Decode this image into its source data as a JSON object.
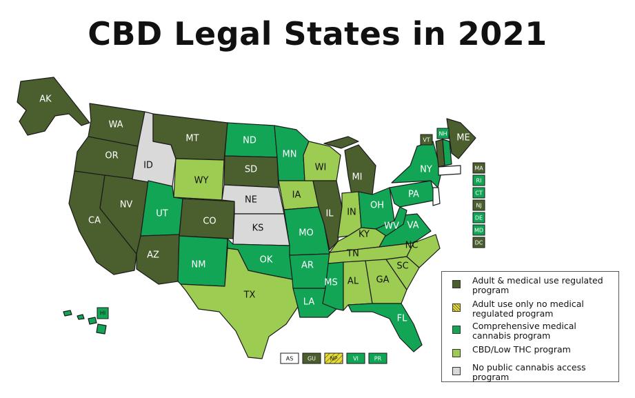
{
  "title": "CBD Legal States in 2021",
  "colors": {
    "adult_medical": "#4a5e2e",
    "adult_only": "#e5dc3c",
    "comprehensive": "#12a556",
    "cbd_low_thc": "#9ccc52",
    "none": "#d9d9d9"
  },
  "legend": [
    {
      "key": "adult_medical",
      "label": "Adult & medical use regulated program"
    },
    {
      "key": "adult_only",
      "label": "Adult use only no medical regulated program"
    },
    {
      "key": "comprehensive",
      "label": "Comprehensive medical cannabis program"
    },
    {
      "key": "cbd_low_thc",
      "label": "CBD/Low THC program"
    },
    {
      "key": "none",
      "label": "No public cannabis access program"
    }
  ],
  "states": {
    "AK": "adult_medical",
    "WA": "adult_medical",
    "OR": "adult_medical",
    "CA": "adult_medical",
    "NV": "adult_medical",
    "ID": "none",
    "MT": "adult_medical",
    "WY": "cbd_low_thc",
    "UT": "comprehensive",
    "AZ": "adult_medical",
    "CO": "adult_medical",
    "NM": "comprehensive",
    "ND": "comprehensive",
    "SD": "adult_medical",
    "NE": "none",
    "KS": "none",
    "OK": "comprehensive",
    "TX": "cbd_low_thc",
    "MN": "comprehensive",
    "IA": "cbd_low_thc",
    "MO": "comprehensive",
    "AR": "comprehensive",
    "LA": "comprehensive",
    "WI": "cbd_low_thc",
    "IL": "adult_medical",
    "MI": "adult_medical",
    "IN": "cbd_low_thc",
    "OH": "comprehensive",
    "KY": "cbd_low_thc",
    "TN": "cbd_low_thc",
    "MS": "comprehensive",
    "AL": "cbd_low_thc",
    "GA": "cbd_low_thc",
    "FL": "comprehensive",
    "SC": "cbd_low_thc",
    "NC": "cbd_low_thc",
    "VA": "comprehensive",
    "WV": "comprehensive",
    "PA": "comprehensive",
    "NY": "comprehensive",
    "ME": "adult_medical",
    "VT": "adult_medical",
    "NH": "comprehensive",
    "HI": "comprehensive"
  },
  "label_list": [
    "AK",
    "WA",
    "OR",
    "CA",
    "NV",
    "ID",
    "MT",
    "WY",
    "UT",
    "AZ",
    "CO",
    "NM",
    "ND",
    "SD",
    "NE",
    "KS",
    "OK",
    "TX",
    "MN",
    "IA",
    "MO",
    "AR",
    "LA",
    "WI",
    "IL",
    "MI",
    "IN",
    "OH",
    "KY",
    "TN",
    "MS",
    "AL",
    "GA",
    "FL",
    "SC",
    "NC",
    "VA",
    "WV",
    "PA",
    "NY",
    "ME",
    "HI"
  ],
  "ne_boxes": [
    {
      "code": "VT",
      "status": "adult_medical"
    },
    {
      "code": "NH",
      "status": "comprehensive"
    },
    {
      "code": "MA",
      "status": "adult_medical"
    },
    {
      "code": "RI",
      "status": "comprehensive"
    },
    {
      "code": "CT",
      "status": "comprehensive"
    },
    {
      "code": "NJ",
      "status": "adult_medical"
    },
    {
      "code": "DE",
      "status": "comprehensive"
    },
    {
      "code": "MD",
      "status": "comprehensive"
    },
    {
      "code": "DC",
      "status": "adult_medical"
    }
  ],
  "territories": [
    {
      "code": "AS",
      "status": "none_white"
    },
    {
      "code": "GU",
      "status": "adult_medical"
    },
    {
      "code": "NP",
      "status": "adult_only"
    },
    {
      "code": "VI",
      "status": "comprehensive"
    },
    {
      "code": "PR",
      "status": "comprehensive"
    }
  ]
}
